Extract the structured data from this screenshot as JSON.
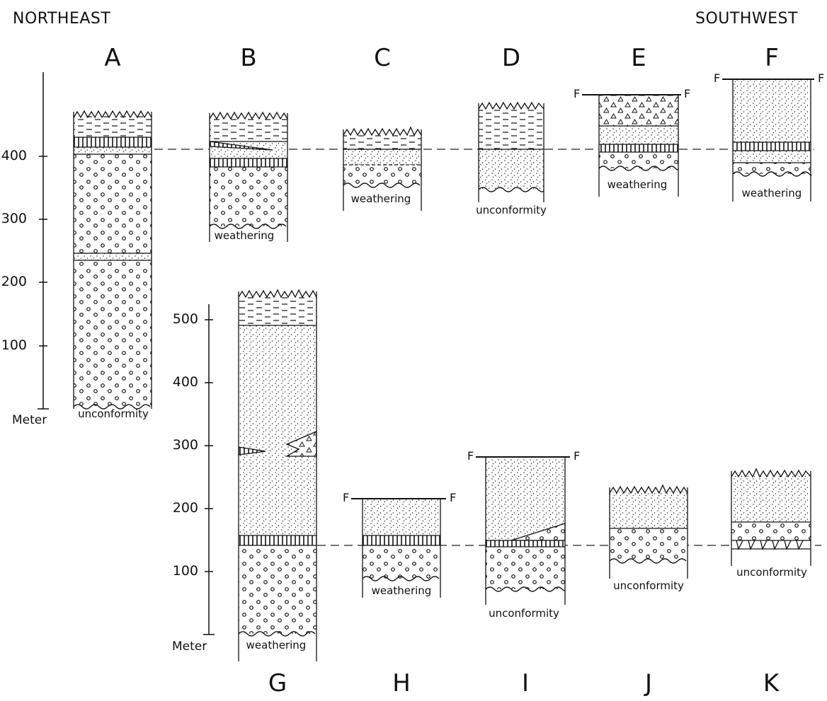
{
  "directions": {
    "left": "NORTHEAST",
    "right": "SOUTHWEST"
  },
  "columns_top": [
    "A",
    "B",
    "C",
    "D",
    "E",
    "F"
  ],
  "columns_bottom": [
    "G",
    "H",
    "I",
    "J",
    "K"
  ],
  "scale_top": {
    "ticks": [
      "400",
      "300",
      "200",
      "100"
    ],
    "unit": "Meter"
  },
  "scale_bottom": {
    "ticks": [
      "500",
      "400",
      "300",
      "200",
      "100"
    ],
    "unit": "Meter"
  },
  "notes": {
    "A": "unconformity",
    "B": "weathering",
    "C": "weathering",
    "D": "unconformity",
    "E": "weathering",
    "F": "weathering",
    "G": "weathering",
    "H": "weathering",
    "I": "unconformity",
    "J": "unconformity",
    "K": "unconformity"
  },
  "fault_mark": "F"
}
